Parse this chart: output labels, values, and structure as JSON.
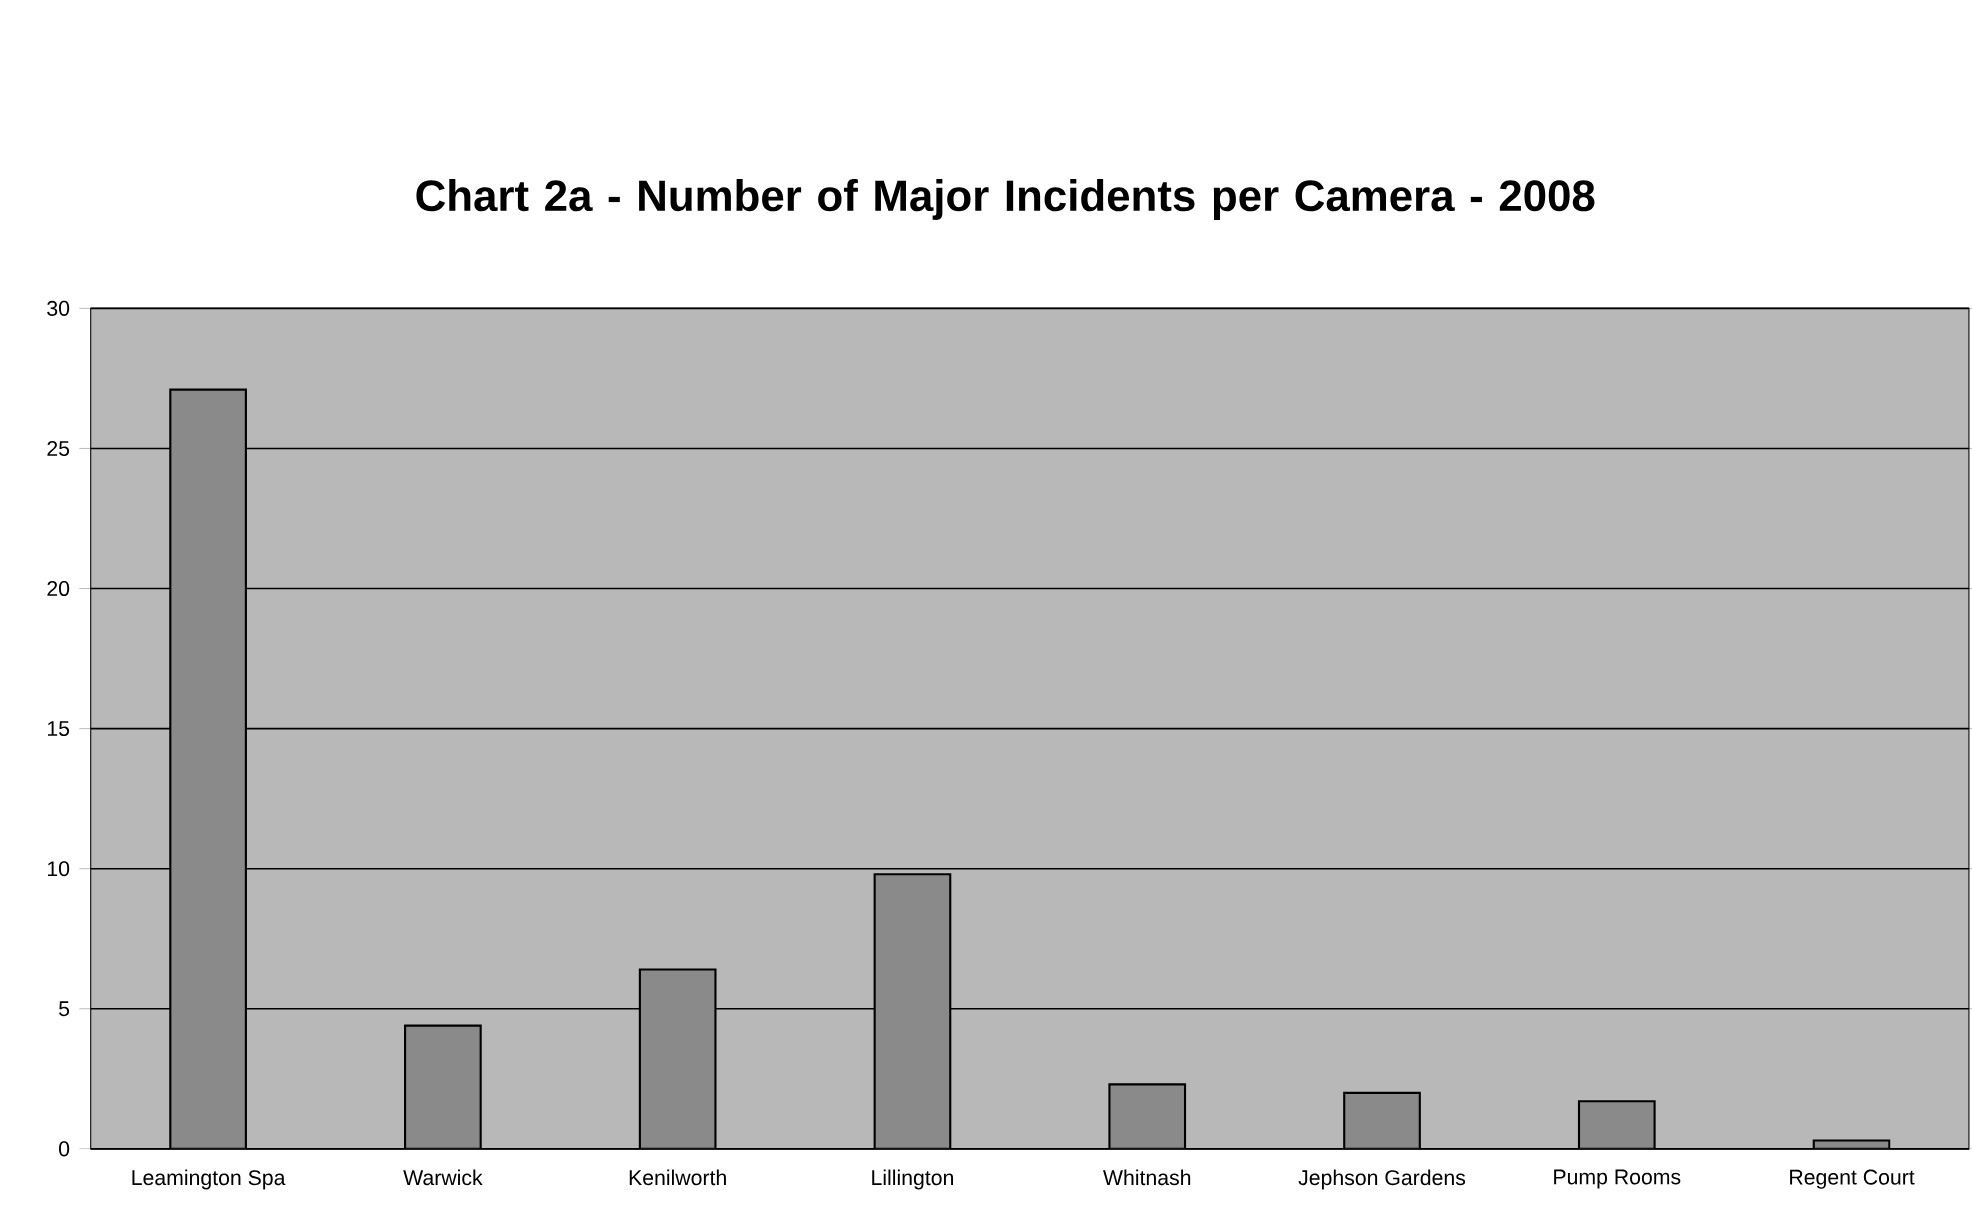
{
  "chart_data": {
    "type": "bar",
    "title": "Chart 2a - Number of Major Incidents per Camera - 2008",
    "categories": [
      "Leamington Spa",
      "Warwick",
      "Kenilworth",
      "Lillington",
      "Whitnash",
      "Jephson Gardens",
      "Pump Rooms",
      "Regent Court"
    ],
    "values": [
      27.1,
      4.4,
      6.4,
      9.8,
      2.3,
      2.0,
      1.7,
      0.3
    ],
    "color": "#8a8a8a",
    "ylim": [
      0,
      30
    ],
    "yticks": [
      0,
      5,
      10,
      15,
      20,
      25,
      30
    ],
    "grid": "y"
  }
}
